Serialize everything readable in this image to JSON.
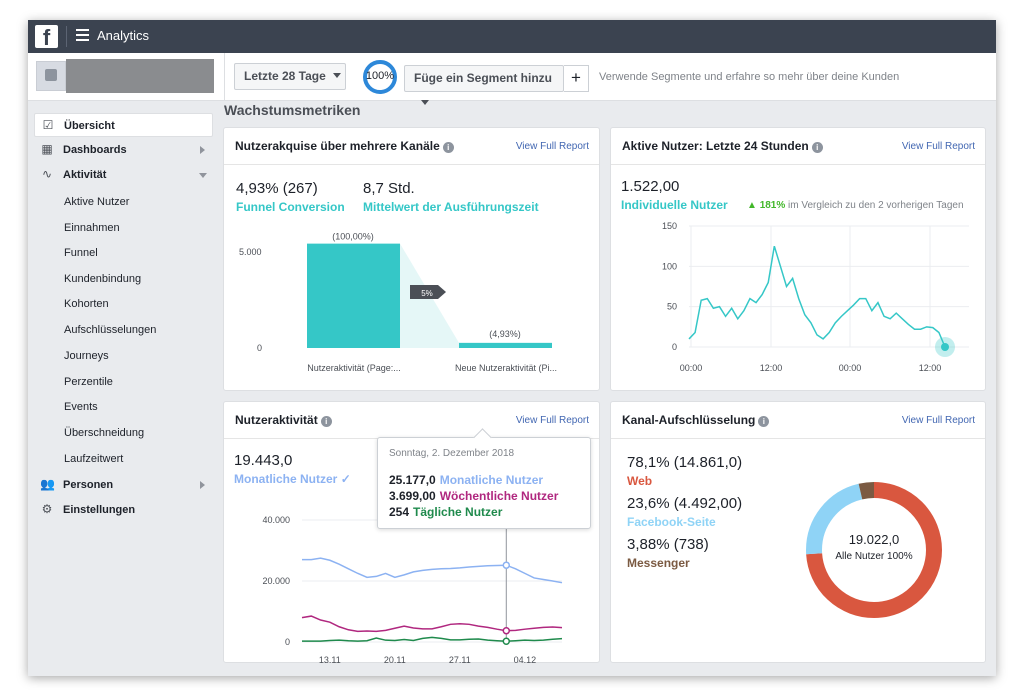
{
  "app": {
    "logo": "f",
    "title": "Analytics",
    "menu_icon": "hamburger-icon"
  },
  "toolbar": {
    "date_range": "Letzte 28 Tage",
    "sampling_pct": "100%",
    "segment_button": "Füge ein Segment hinzu",
    "add_label": "+",
    "hint": "Verwende Segmente und erfahre so mehr über deine Kunden"
  },
  "sidebar": {
    "overview": "Übersicht",
    "dashboards": "Dashboards",
    "activity": "Aktivität",
    "activity_items": [
      "Aktive Nutzer",
      "Einnahmen",
      "Funnel",
      "Kundenbindung",
      "Kohorten",
      "Aufschlüsselungen",
      "Journeys",
      "Perzentile",
      "Events",
      "Überschneidung",
      "Laufzeitwert"
    ],
    "people": "Personen",
    "settings": "Einstellungen"
  },
  "main": {
    "section_title": "Wachstumsmetriken",
    "view_full": "View Full Report",
    "acquisition": {
      "title": "Nutzerakquise über mehrere Kanäle",
      "kpi1_value": "4,93% (267)",
      "kpi1_label": "Funnel Conversion",
      "kpi2_value": "8,7 Std.",
      "kpi2_label": "Mittelwert der Ausführungszeit",
      "y_ticks": [
        "5.000",
        "0"
      ],
      "bar1_label": "(100,00%)",
      "bar2_label": "(4,93%)",
      "drop_label": "5%",
      "x1": "Nutzeraktivität (Page:...",
      "x2": "Neue Nutzeraktivität (Pi..."
    },
    "active_users": {
      "title": "Aktive Nutzer: Letzte 24 Stunden",
      "value": "1.522,00",
      "label": "Individuelle Nutzer",
      "change": "181%",
      "change_text": "im Vergleich zu den 2 vorherigen Tagen",
      "y_ticks": [
        "150",
        "100",
        "50",
        "0"
      ],
      "x_ticks": [
        "00:00",
        "12:00",
        "00:00",
        "12:00"
      ]
    },
    "user_activity": {
      "title": "Nutzeraktivität",
      "value": "19.443,0",
      "label": "Monatliche Nutzer",
      "check": "✓",
      "y_ticks": [
        "40.000",
        "20.000",
        "0"
      ],
      "x_ticks": [
        "13.11",
        "20.11",
        "27.11",
        "04.12"
      ],
      "tooltip": {
        "date": "Sonntag, 2. Dezember 2018",
        "rows": [
          {
            "value": "25.177,0",
            "label": "Monatliche Nutzer"
          },
          {
            "value": "3.699,00",
            "label": "Wöchentliche Nutzer"
          },
          {
            "value": "254",
            "label": "Tägliche Nutzer"
          }
        ]
      }
    },
    "channel": {
      "title": "Kanal-Aufschlüsselung",
      "items": [
        {
          "value": "78,1% (14.861,0)",
          "label": "Web"
        },
        {
          "value": "23,6% (4.492,00)",
          "label": "Facebook-Seite"
        },
        {
          "value": "3,88% (738)",
          "label": "Messenger"
        }
      ],
      "center_value": "19.022,0",
      "center_label": "Alle Nutzer 100%"
    }
  },
  "colors": {
    "teal": "#35c7c7",
    "blue_line": "#8cb2f2",
    "magenta": "#b0277f",
    "green": "#1f8a4c",
    "web": "#d9573f",
    "facebook": "#8fd3f6",
    "messenger": "#7b5a42",
    "up_green": "#42b72a"
  },
  "chart_data": [
    {
      "type": "bar",
      "title": "Nutzerakquise über mehrere Kanäle",
      "categories": [
        "Nutzeraktivität (Page:...",
        "Neue Nutzeraktivität (Pi..."
      ],
      "values": [
        5416,
        267
      ],
      "ylim": [
        0,
        5500
      ]
    },
    {
      "type": "line",
      "title": "Aktive Nutzer: Letzte 24 Stunden",
      "series": [
        {
          "name": "Individuelle Nutzer",
          "values": [
            10,
            18,
            58,
            60,
            48,
            50,
            38,
            48,
            35,
            45,
            60,
            55,
            65,
            80,
            125,
            100,
            75,
            85,
            60,
            40,
            30,
            15,
            10,
            18,
            30,
            38,
            45,
            52,
            60,
            60,
            45,
            55,
            38,
            35,
            42,
            35,
            28,
            22,
            22,
            25,
            24,
            18,
            0
          ]
        }
      ],
      "ylim": [
        0,
        150
      ],
      "x_ticks": [
        "00:00",
        "12:00",
        "00:00",
        "12:00"
      ]
    },
    {
      "type": "line",
      "title": "Nutzeraktivität",
      "x": [
        "10.11",
        "11.11",
        "12.11",
        "13.11",
        "14.11",
        "15.11",
        "16.11",
        "17.11",
        "18.11",
        "19.11",
        "20.11",
        "21.11",
        "22.11",
        "23.11",
        "24.11",
        "25.11",
        "26.11",
        "27.11",
        "28.11",
        "29.11",
        "30.11",
        "01.12",
        "02.12",
        "03.12",
        "04.12",
        "05.12",
        "06.12",
        "07.12",
        "08.12"
      ],
      "series": [
        {
          "name": "Monatliche Nutzer",
          "values": [
            27000,
            27000,
            27500,
            26800,
            25500,
            24000,
            22500,
            21200,
            21500,
            22500,
            21200,
            22000,
            23000,
            23500,
            23800,
            24000,
            24100,
            24300,
            24600,
            24800,
            25000,
            25100,
            25177,
            24000,
            22500,
            21000,
            20500,
            20000,
            19443
          ]
        },
        {
          "name": "Wöchentliche Nutzer",
          "values": [
            8000,
            8500,
            7200,
            6500,
            5000,
            4000,
            3500,
            3600,
            3500,
            3800,
            4500,
            5200,
            4600,
            4300,
            4300,
            5000,
            5800,
            6000,
            5800,
            5200,
            4800,
            4200,
            3699,
            3800,
            4200,
            4500,
            4800,
            4900,
            4700
          ]
        },
        {
          "name": "Tägliche Nutzer",
          "values": [
            300,
            300,
            300,
            500,
            600,
            400,
            300,
            400,
            1300,
            600,
            500,
            800,
            500,
            1200,
            1500,
            1200,
            700,
            700,
            900,
            1000,
            600,
            400,
            254,
            400,
            600,
            500,
            600,
            900,
            1100
          ]
        }
      ],
      "ylim": [
        0,
        40000
      ]
    },
    {
      "type": "pie",
      "title": "Kanal-Aufschlüsselung",
      "categories": [
        "Web",
        "Facebook-Seite",
        "Messenger"
      ],
      "values": [
        78.1,
        23.6,
        3.88
      ]
    }
  ]
}
